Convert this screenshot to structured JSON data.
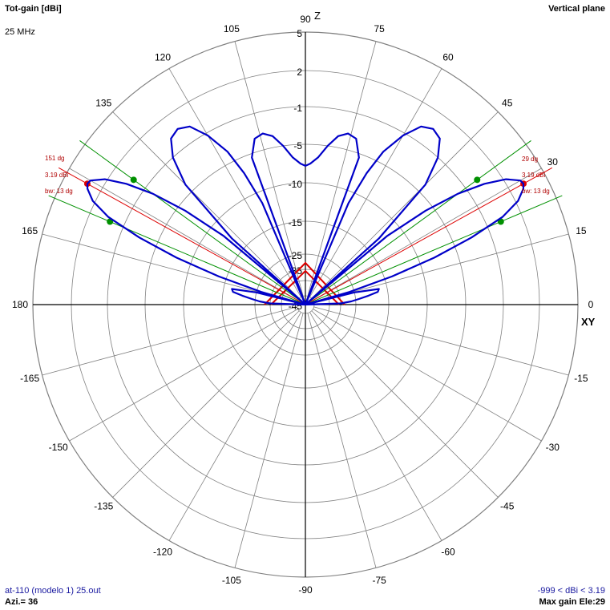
{
  "header": {
    "title": "Tot-gain [dBi]",
    "frequency": "25 MHz",
    "plane": "Vertical plane"
  },
  "footer": {
    "file": "at-110 (modelo 1) 25.out",
    "azimuth": "Azi.= 36",
    "range": "-999 < dBi < 3.19",
    "max_gain": "Max gain Ele:29"
  },
  "colors": {
    "pattern": "#0000c8",
    "grid": "#808080",
    "axis": "#000000",
    "max_marker": "#dd0000",
    "beamwidth_marker": "#009000",
    "antenna": "#dd0000"
  },
  "chart_data": {
    "type": "polar",
    "angle_unit": "degrees elevation",
    "angle_ticks": [
      {
        "deg": 0,
        "label": "0"
      },
      {
        "deg": 15,
        "label": "15"
      },
      {
        "deg": 30,
        "label": "30"
      },
      {
        "deg": 45,
        "label": "45"
      },
      {
        "deg": 60,
        "label": "60"
      },
      {
        "deg": 75,
        "label": "75"
      },
      {
        "deg": 90,
        "label": "90"
      },
      {
        "deg": 105,
        "label": "105"
      },
      {
        "deg": 120,
        "label": "120"
      },
      {
        "deg": 135,
        "label": "135"
      },
      {
        "deg": 150,
        "label": ""
      },
      {
        "deg": 165,
        "label": "165"
      },
      {
        "deg": 180,
        "label": "180"
      },
      {
        "deg": -15,
        "label": "-15"
      },
      {
        "deg": -30,
        "label": "-30"
      },
      {
        "deg": -45,
        "label": "-45"
      },
      {
        "deg": -60,
        "label": "-60"
      },
      {
        "deg": -75,
        "label": "-75"
      },
      {
        "deg": -90,
        "label": "-90"
      },
      {
        "deg": -105,
        "label": "-105"
      },
      {
        "deg": -120,
        "label": "-120"
      },
      {
        "deg": -135,
        "label": "-135"
      },
      {
        "deg": -150,
        "label": "-150"
      },
      {
        "deg": -165,
        "label": "-165"
      }
    ],
    "axis_labels": {
      "vertical": "Z",
      "horizontal": "XY"
    },
    "gain_scale": {
      "max_dbi": 5,
      "min_dbi": -45
    },
    "gain_ticks": [
      {
        "dbi": 5,
        "label": "5"
      },
      {
        "dbi": 2,
        "label": "2"
      },
      {
        "dbi": -1,
        "label": "-1"
      },
      {
        "dbi": -5,
        "label": "-5"
      },
      {
        "dbi": -10,
        "label": "-10"
      },
      {
        "dbi": -15,
        "label": "-15"
      },
      {
        "dbi": -25,
        "label": "-25"
      },
      {
        "dbi": -35,
        "label": "-35"
      },
      {
        "dbi": -45,
        "label": "-45"
      }
    ],
    "pattern_series": [
      [
        0,
        -45
      ],
      [
        2,
        -35
      ],
      [
        4,
        -28
      ],
      [
        6,
        -24
      ],
      [
        8,
        -21
      ],
      [
        10,
        -18
      ],
      [
        12,
        -17.5
      ],
      [
        14,
        -25
      ],
      [
        15,
        -45
      ],
      [
        16,
        -28
      ],
      [
        18,
        -14
      ],
      [
        20,
        -8
      ],
      [
        22,
        -3
      ],
      [
        24,
        0.5
      ],
      [
        26,
        2.2
      ],
      [
        28,
        3.0
      ],
      [
        29,
        3.19
      ],
      [
        30,
        3.1
      ],
      [
        32,
        2.2
      ],
      [
        34,
        0.5
      ],
      [
        36,
        -2
      ],
      [
        38,
        -6
      ],
      [
        40,
        -12
      ],
      [
        41,
        -45
      ],
      [
        42,
        -13
      ],
      [
        45,
        -4
      ],
      [
        48,
        -1
      ],
      [
        51,
        0.3
      ],
      [
        54,
        0.6
      ],
      [
        57,
        0.2
      ],
      [
        60,
        -1.3
      ],
      [
        63,
        -3.8
      ],
      [
        65,
        -7
      ],
      [
        67,
        -11.5
      ],
      [
        68,
        -45
      ],
      [
        70,
        -5.5
      ],
      [
        73,
        -3.6
      ],
      [
        76,
        -3.3
      ],
      [
        79,
        -3.8
      ],
      [
        82,
        -5
      ],
      [
        85,
        -6.6
      ],
      [
        88,
        -7.5
      ],
      [
        90,
        -7.8
      ]
    ],
    "pattern_symmetric": true,
    "max_gain": {
      "elevation_deg": 29,
      "gain_dbi": 3.19,
      "beamwidth_deg": 13
    },
    "beamwidth_edges_deg": [
      23,
      36
    ],
    "annotations_right": {
      "angle": "29 dg",
      "gain": "3.19 dBi",
      "bw": "bw: 13 dg"
    },
    "annotations_left": {
      "angle": "151 dg",
      "gain": "3.19 dBi",
      "bw": "bw: 13 dg"
    }
  }
}
